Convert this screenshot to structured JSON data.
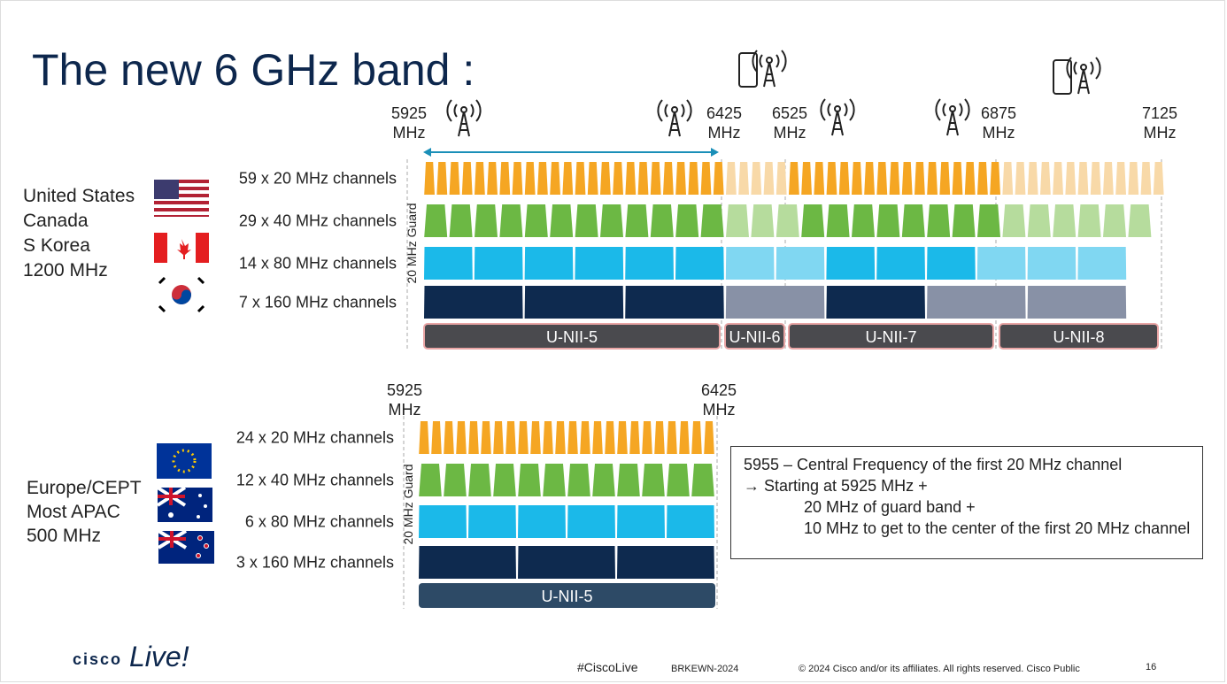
{
  "header": {
    "title": "The new 6 GHz band :"
  },
  "us": {
    "region": [
      "United States",
      "Canada",
      "S Korea",
      "1200 MHz"
    ],
    "freqs": [
      {
        "value": "5925",
        "unit": "MHz"
      },
      {
        "value": "6425",
        "unit": "MHz"
      },
      {
        "value": "6525",
        "unit": "MHz"
      },
      {
        "value": "6875",
        "unit": "MHz"
      },
      {
        "value": "7125",
        "unit": "MHz"
      }
    ],
    "channels": [
      "59 x 20 MHz channels",
      "29 x 40 MHz channels",
      "14 x 80 MHz channels",
      "7 x 160 MHz channels"
    ],
    "guard": "20 MHz Guard",
    "bands": [
      "U-NII-5",
      "U-NII-6",
      "U-NII-7",
      "U-NII-8"
    ]
  },
  "eu": {
    "region": [
      "Europe/CEPT",
      "Most APAC",
      "500 MHz"
    ],
    "freqs": [
      {
        "value": "5925",
        "unit": "MHz"
      },
      {
        "value": "6425",
        "unit": "MHz"
      }
    ],
    "channels": [
      "24 x 20 MHz channels",
      "12 x 40 MHz channels",
      "6 x 80 MHz channels",
      "3 x 160 MHz channels"
    ],
    "guard": "20 MHz Guard",
    "bands": [
      "U-NII-5"
    ]
  },
  "note": {
    "lines": [
      "5955 – Central Frequency of the first 20 MHz channel",
      "→  Starting at 5925 MHz +",
      "20 MHz of guard band +",
      "10 MHz  to get to the center of the first 20 MHz channel"
    ]
  },
  "footer": {
    "logo": "cisco",
    "live": "Live!",
    "hashtag": "#CiscoLive",
    "session": "BRKEWN-2024",
    "copyright": "© 2024  Cisco and/or its affiliates. All rights reserved.  Cisco Public",
    "page": "16"
  }
}
